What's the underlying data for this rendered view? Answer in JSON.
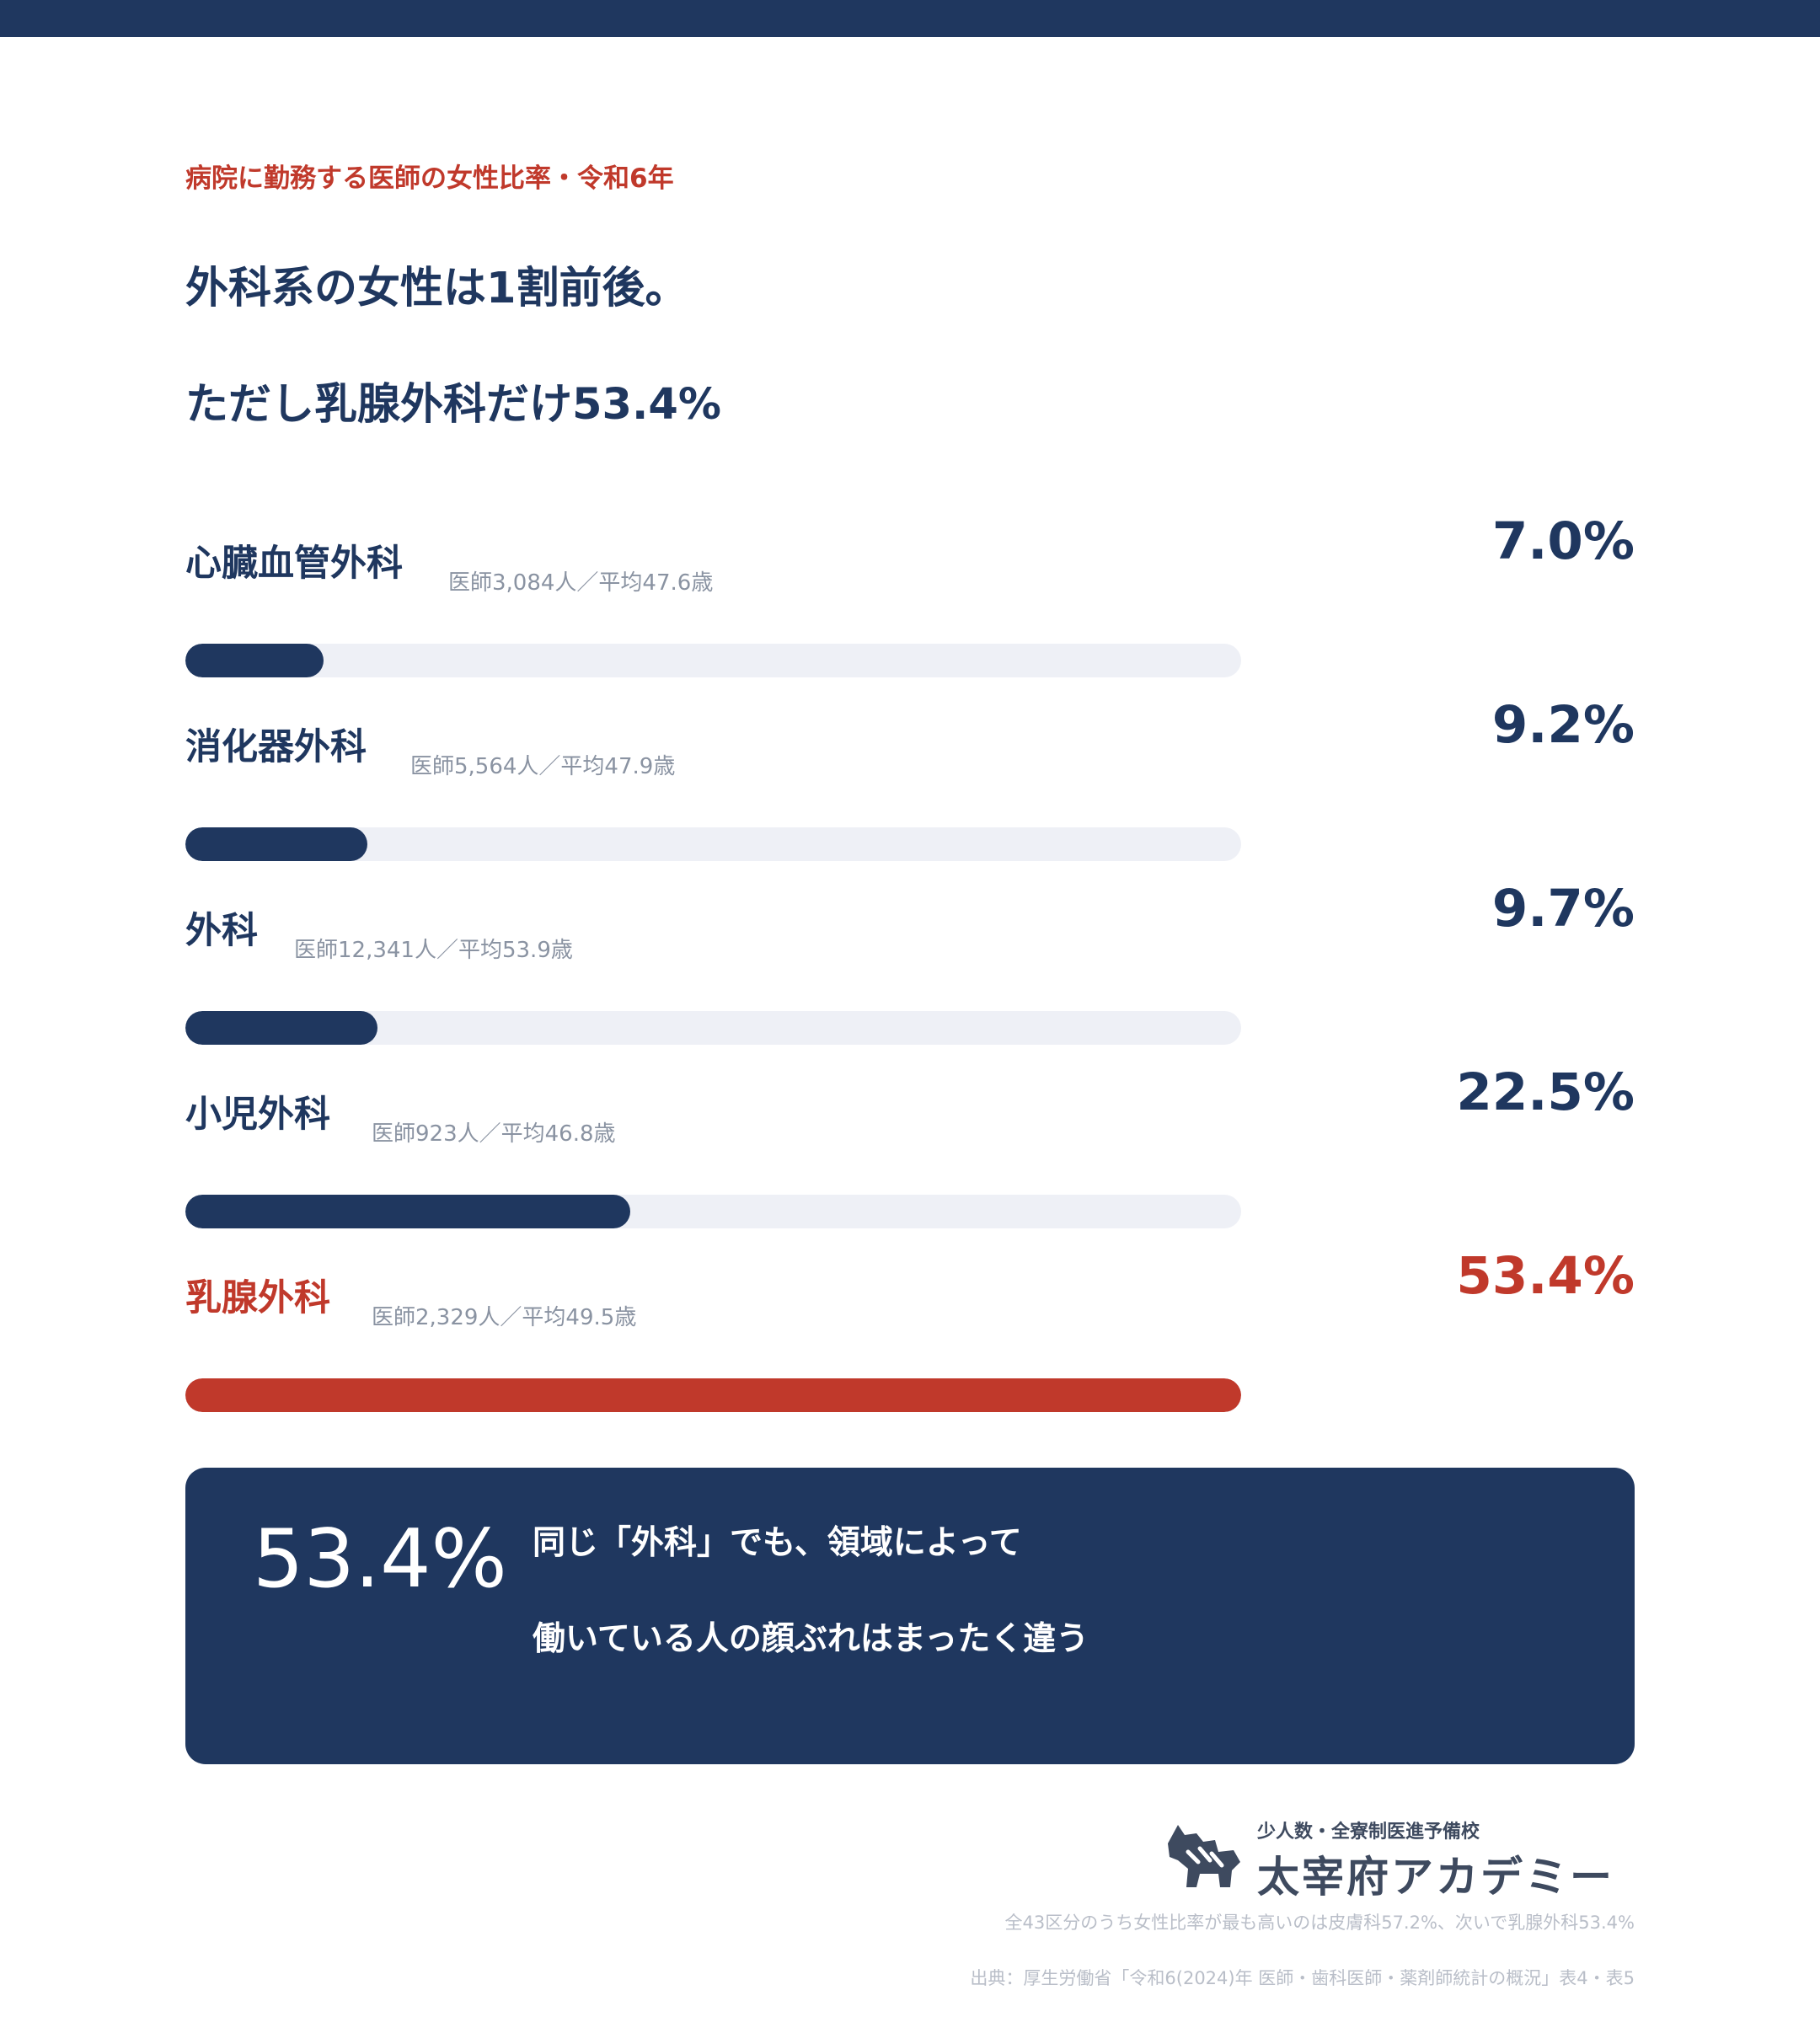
{
  "kicker": "病院に勤務する医師の女性比率・令和6年",
  "headline": {
    "line1": "外科系の女性は1割前後。",
    "line2": "ただし乳腺外科だけ53.4%"
  },
  "colors": {
    "navy": "#1f375f",
    "highlight": "#c0392b",
    "track": "#eef0f6"
  },
  "chart_data": {
    "type": "bar",
    "orientation": "horizontal",
    "xlim": [
      0,
      53.4
    ],
    "grid": false,
    "categories": [
      "心臓血管外科",
      "消化器外科",
      "外科",
      "小児外科",
      "乳腺外科"
    ],
    "values": [
      7.0,
      9.2,
      9.7,
      22.5,
      53.4
    ],
    "rows": [
      {
        "name": "心臓血管外科",
        "sub": "医師3,084人／平均47.6歳",
        "pct": 7.0,
        "pct_label": "7.0%",
        "highlight": false
      },
      {
        "name": "消化器外科",
        "sub": "医師5,564人／平均47.9歳",
        "pct": 9.2,
        "pct_label": "9.2%",
        "highlight": false
      },
      {
        "name": "外科",
        "sub": "医師12,341人／平均53.9歳",
        "pct": 9.7,
        "pct_label": "9.7%",
        "highlight": false
      },
      {
        "name": "小児外科",
        "sub": "医師923人／平均46.8歳",
        "pct": 22.5,
        "pct_label": "22.5%",
        "highlight": false
      },
      {
        "name": "乳腺外科",
        "sub": "医師2,329人／平均49.5歳",
        "pct": 53.4,
        "pct_label": "53.4%",
        "highlight": true
      }
    ]
  },
  "callout": {
    "value": "53.4%",
    "line1": "同じ「外科」でも、領域によって",
    "line2": "働いている人の顔ぶれはまったく違う"
  },
  "logo": {
    "tagline": "少人数・全寮制医進予備校",
    "name": "太宰府アカデミー"
  },
  "footnotes": {
    "note": "全43区分のうち女性比率が最も高いのは皮膚科57.2%、次いで乳腺外科53.4%",
    "source": "出典：厚生労働省「令和6(2024)年 医師・歯科医師・薬剤師統計の概況」表4・表5"
  }
}
